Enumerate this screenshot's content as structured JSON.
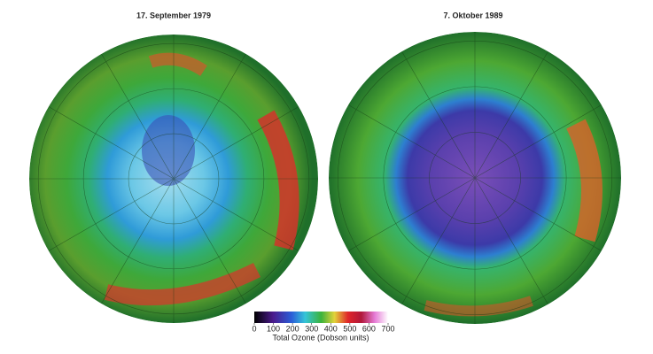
{
  "maps": [
    {
      "title": "17. September 1979"
    },
    {
      "title": "7. Oktober 1989"
    }
  ],
  "colorbar": {
    "label": "Total Ozone (Dobson units)",
    "lim": [
      0,
      700
    ],
    "ticks": [
      0,
      100,
      200,
      300,
      400,
      500,
      600,
      700
    ]
  }
}
